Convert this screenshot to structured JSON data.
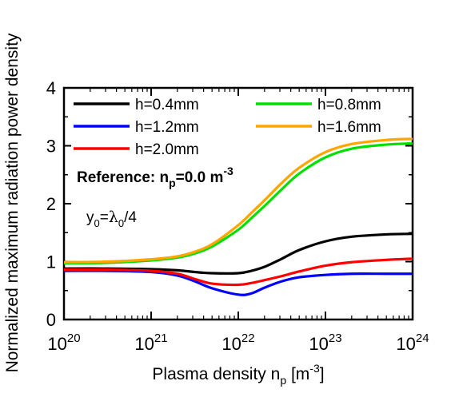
{
  "chart_data": {
    "type": "line",
    "xscale": "log",
    "xlabel_main": "Plasma density n",
    "xlabel_sub": "p",
    "xlabel_unit_open": " [m",
    "xlabel_unit_sup": "-3",
    "xlabel_unit_close": "]",
    "ylabel": "Normalized maximum radiation power density",
    "xlim": [
      1e+20,
      1e+24
    ],
    "ylim": [
      0,
      4
    ],
    "x_ticks": [
      {
        "base": "10",
        "exp": "20",
        "value": 1e+20
      },
      {
        "base": "10",
        "exp": "21",
        "value": 1e+21
      },
      {
        "base": "10",
        "exp": "22",
        "value": 1e+22
      },
      {
        "base": "10",
        "exp": "23",
        "value": 1e+23
      },
      {
        "base": "10",
        "exp": "24",
        "value": 1e+24
      }
    ],
    "y_ticks": [
      "0",
      "1",
      "2",
      "3",
      "4"
    ],
    "x": [
      1e+20,
      3.16e+20,
      1e+21,
      2e+21,
      3.16e+21,
      5e+21,
      1e+22,
      1.41e+22,
      2e+22,
      3.16e+22,
      5e+22,
      1e+23,
      2e+23,
      5e+23,
      1e+24
    ],
    "series": [
      {
        "name": "h=0.4mm",
        "color": "#000000",
        "values": [
          0.88,
          0.88,
          0.87,
          0.85,
          0.82,
          0.8,
          0.8,
          0.84,
          0.91,
          1.05,
          1.2,
          1.35,
          1.43,
          1.47,
          1.48
        ]
      },
      {
        "name": "h=0.8mm",
        "color": "#00e000",
        "values": [
          0.97,
          0.98,
          1.02,
          1.07,
          1.14,
          1.26,
          1.55,
          1.75,
          1.96,
          2.25,
          2.52,
          2.8,
          2.95,
          3.02,
          3.04
        ]
      },
      {
        "name": "h=1.2mm",
        "color": "#0000ff",
        "values": [
          0.84,
          0.84,
          0.82,
          0.76,
          0.66,
          0.54,
          0.43,
          0.45,
          0.55,
          0.66,
          0.73,
          0.77,
          0.79,
          0.79,
          0.79
        ]
      },
      {
        "name": "h=1.6mm",
        "color": "#ffa500",
        "values": [
          0.99,
          1.0,
          1.04,
          1.09,
          1.17,
          1.3,
          1.63,
          1.84,
          2.06,
          2.36,
          2.62,
          2.89,
          3.03,
          3.1,
          3.12
        ]
      },
      {
        "name": "h=2.0mm",
        "color": "#ff0000",
        "values": [
          0.86,
          0.86,
          0.84,
          0.79,
          0.7,
          0.62,
          0.6,
          0.63,
          0.68,
          0.75,
          0.83,
          0.93,
          0.99,
          1.03,
          1.05
        ]
      }
    ],
    "legend": [
      {
        "label": "h=0.4mm",
        "color": "#000000"
      },
      {
        "label": "h=0.8mm",
        "color": "#00e000"
      },
      {
        "label": "h=1.2mm",
        "color": "#0000ff"
      },
      {
        "label": "h=1.6mm",
        "color": "#ffa500"
      },
      {
        "label": "h=2.0mm",
        "color": "#ff0000"
      }
    ],
    "legend_placement": "top-left",
    "annotations": {
      "reference_prefix": "Reference: n",
      "reference_sub": "p",
      "reference_value": "=0.0 m",
      "reference_sup": "-3",
      "y0_main": "y",
      "y0_sub": "0",
      "y0_eq": "=",
      "lambda": "λ",
      "lambda_sub": "0",
      "y0_tail": "/4"
    },
    "grid": false
  }
}
